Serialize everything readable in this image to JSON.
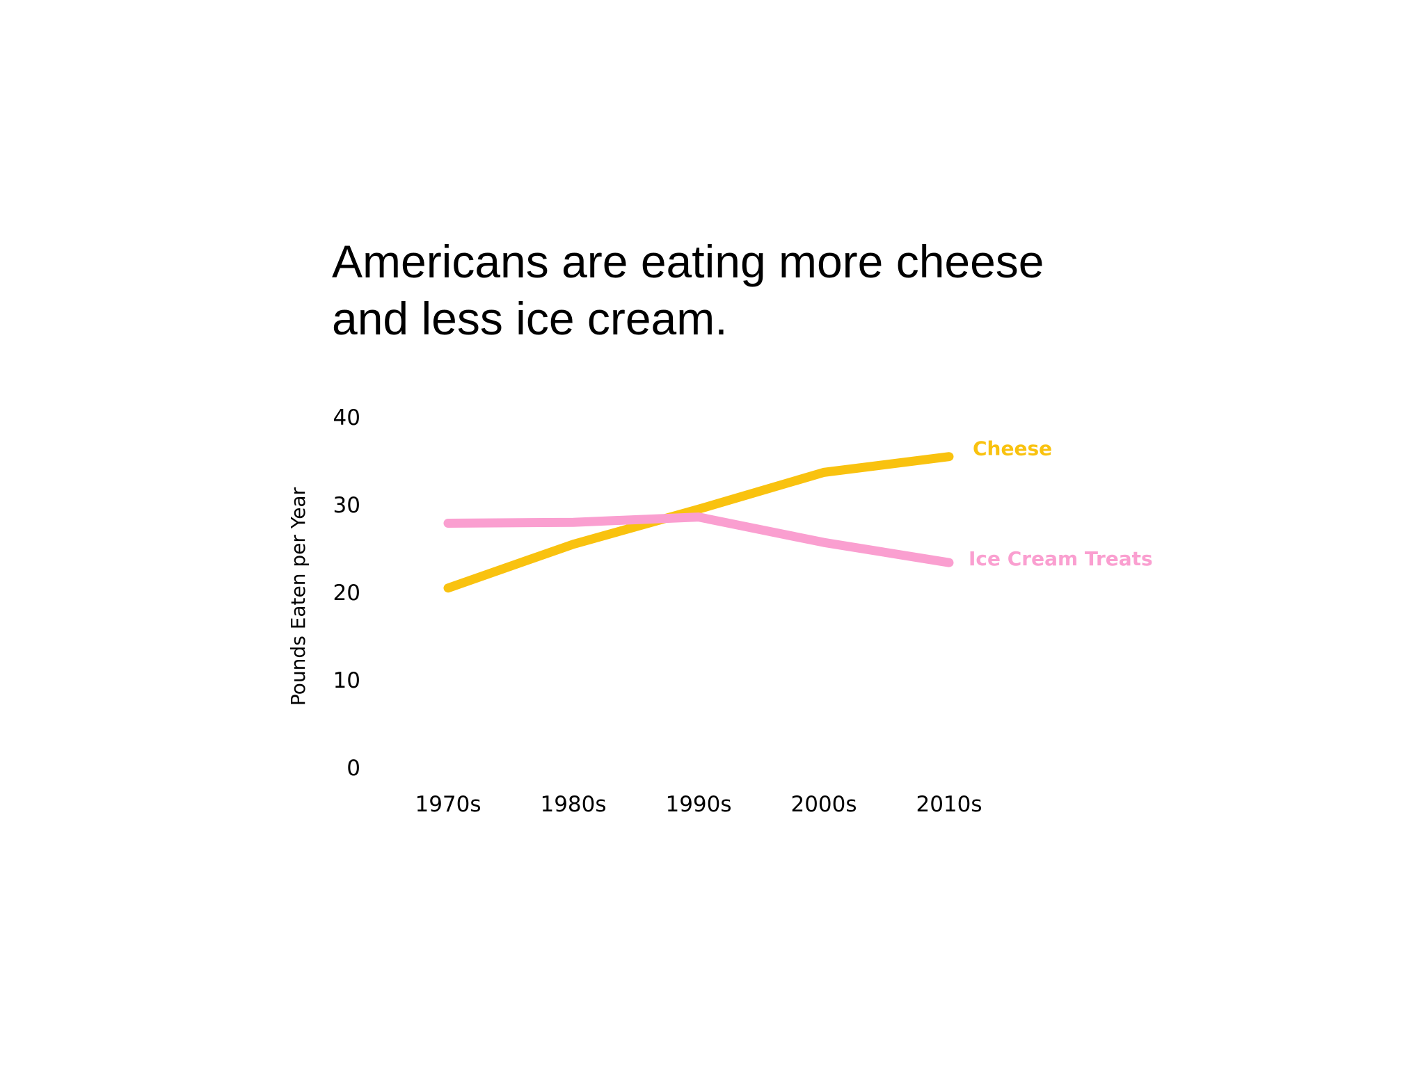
{
  "colors": {
    "cheese": "#F9C20F",
    "ice_cream": "#FA9FD0",
    "background": "#FFFFFF",
    "text": "#000000"
  },
  "chart_data": {
    "type": "line",
    "title": "Americans are eating more cheese and less ice cream.",
    "title_lines": [
      "Americans are eating more cheese",
      "and less ice cream."
    ],
    "categories": [
      "1970s",
      "1980s",
      "1990s",
      "2000s",
      "2010s"
    ],
    "series": [
      {
        "name": "Cheese",
        "color": "#F9C20F",
        "values": [
          20.5,
          25.5,
          29.5,
          33.7,
          35.5
        ]
      },
      {
        "name": "Ice Cream Treats",
        "color": "#FA9FD0",
        "values": [
          27.9,
          28.0,
          28.6,
          25.7,
          23.4
        ]
      }
    ],
    "xlabel": "",
    "ylabel": "Pounds Eaten per Year",
    "ylim": [
      0,
      40
    ],
    "yticks": [
      0,
      10,
      20,
      30,
      40
    ],
    "grid": false,
    "legend": "direct labels at line ends"
  }
}
